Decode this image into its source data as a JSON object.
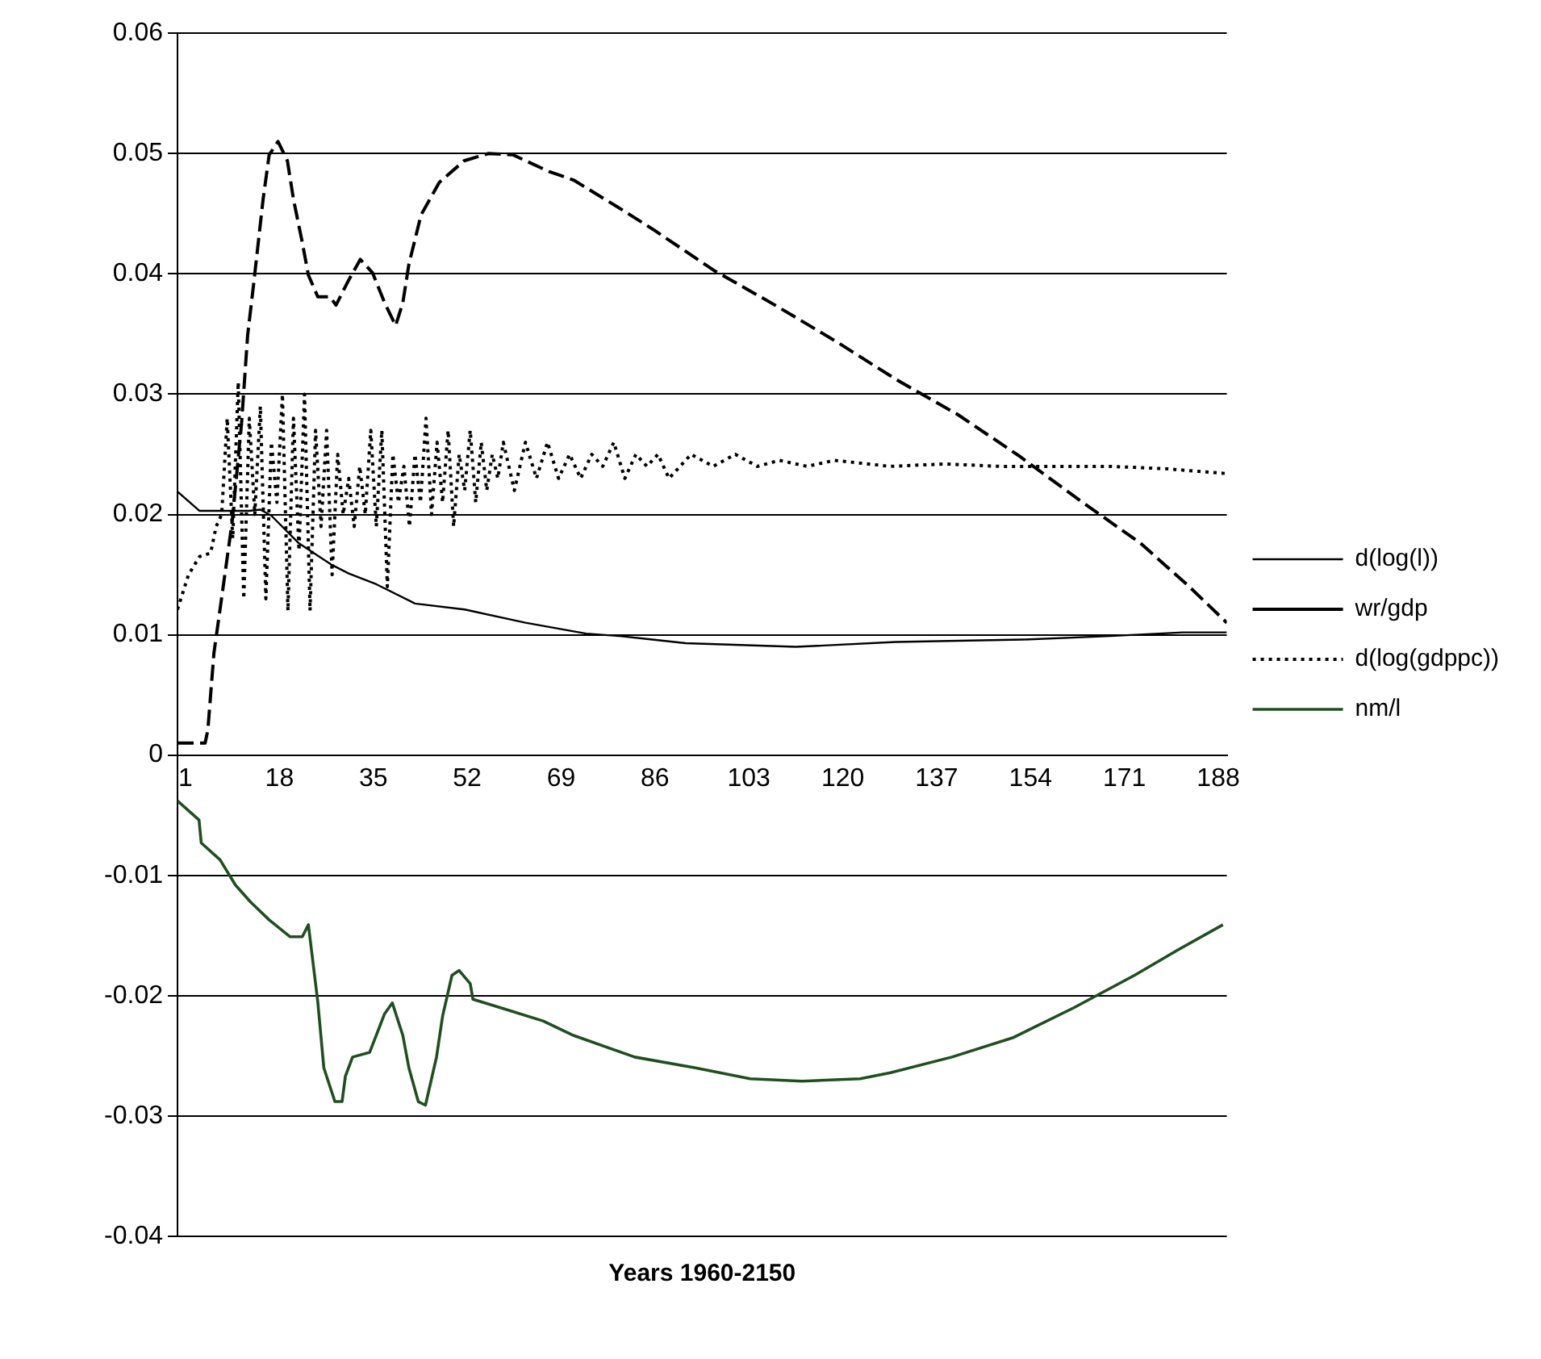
{
  "chart_data": {
    "type": "line",
    "xlabel": "Years 1960-2150",
    "xlim": [
      1,
      191
    ],
    "xticks": [
      1,
      18,
      35,
      52,
      69,
      86,
      103,
      120,
      137,
      154,
      171,
      188
    ],
    "ylim": [
      -0.04,
      0.06
    ],
    "yticks": [
      -0.04,
      -0.03,
      -0.02,
      -0.01,
      0,
      0.01,
      0.02,
      0.03,
      0.04,
      0.05,
      0.06
    ],
    "grid": "y",
    "legend": "right",
    "series": [
      {
        "name": "d(log(l))",
        "color": "#000000",
        "line_style": "solid",
        "x": [
          1,
          5,
          14,
          16,
          18,
          23,
          29,
          32,
          37,
          44,
          53,
          64,
          75,
          81,
          87,
          93,
          113,
          131,
          154,
          170,
          183,
          191
        ],
        "values": [
          0.0219,
          0.0203,
          0.0203,
          0.0204,
          0.0199,
          0.0176,
          0.0158,
          0.0151,
          0.0142,
          0.0126,
          0.0121,
          0.011,
          0.0101,
          0.0099,
          0.0096,
          0.0093,
          0.009,
          0.0094,
          0.0096,
          0.0099,
          0.0102,
          0.0102
        ]
      },
      {
        "name": "wr/gdp",
        "color": "#000000",
        "line_style": "dashed",
        "x": [
          1,
          6,
          6.5,
          7.6,
          8.7,
          10.9,
          12.6,
          13.7,
          14.8,
          16.5,
          17.6,
          19.2,
          20.9,
          22,
          23.6,
          24.7,
          26.4,
          28.6,
          29.7,
          31.9,
          34.1,
          36.3,
          38.5,
          40.5,
          41.8,
          42.9,
          45.1,
          48.4,
          52.9,
          57.3,
          61.7,
          68.3,
          72.7,
          81.6,
          87.1,
          98.1,
          109.2,
          120.2,
          131.2,
          142.3,
          153.3,
          164.3,
          175.4,
          184.2,
          191
        ],
        "values": [
          0.001,
          0.001,
          0.0021,
          0.0085,
          0.0121,
          0.0194,
          0.0276,
          0.0349,
          0.0392,
          0.0462,
          0.0499,
          0.051,
          0.0494,
          0.0462,
          0.0426,
          0.0399,
          0.0381,
          0.0381,
          0.0374,
          0.0394,
          0.0412,
          0.0401,
          0.0376,
          0.0357,
          0.0376,
          0.0408,
          0.0449,
          0.0476,
          0.0494,
          0.05,
          0.0499,
          0.0485,
          0.0478,
          0.0453,
          0.0437,
          0.0403,
          0.0374,
          0.0344,
          0.0312,
          0.0283,
          0.0249,
          0.0212,
          0.0176,
          0.014,
          0.011
        ]
      },
      {
        "name": "d(log(gdppc))",
        "color": "#000000",
        "line_style": "dotted",
        "x": [
          1,
          3,
          5,
          7,
          8,
          9,
          10,
          11,
          12,
          13,
          14,
          15,
          16,
          17,
          18,
          19,
          20,
          21,
          22,
          23,
          24,
          25,
          26,
          27,
          28,
          29,
          30,
          31,
          32,
          33,
          34,
          35,
          36,
          37,
          38,
          39,
          40,
          41,
          42,
          43,
          44,
          45,
          46,
          47,
          48,
          49,
          50,
          51,
          52,
          53,
          54,
          55,
          56,
          57,
          58,
          59,
          60,
          62,
          64,
          66,
          68,
          70,
          72,
          74,
          76,
          78,
          80,
          82,
          84,
          86,
          88,
          90,
          94,
          98,
          102,
          106,
          110,
          115,
          120,
          130,
          140,
          150,
          160,
          170,
          180,
          191
        ],
        "values": [
          0.0121,
          0.015,
          0.0165,
          0.0168,
          0.019,
          0.02,
          0.028,
          0.018,
          0.031,
          0.013,
          0.028,
          0.02,
          0.029,
          0.013,
          0.026,
          0.021,
          0.03,
          0.012,
          0.028,
          0.017,
          0.03,
          0.012,
          0.027,
          0.019,
          0.027,
          0.015,
          0.025,
          0.02,
          0.023,
          0.019,
          0.024,
          0.02,
          0.027,
          0.019,
          0.027,
          0.014,
          0.025,
          0.021,
          0.024,
          0.019,
          0.025,
          0.021,
          0.028,
          0.02,
          0.026,
          0.021,
          0.027,
          0.019,
          0.025,
          0.022,
          0.027,
          0.021,
          0.026,
          0.022,
          0.025,
          0.023,
          0.026,
          0.022,
          0.026,
          0.023,
          0.026,
          0.023,
          0.025,
          0.023,
          0.025,
          0.024,
          0.026,
          0.023,
          0.025,
          0.024,
          0.025,
          0.023,
          0.025,
          0.024,
          0.025,
          0.024,
          0.0245,
          0.024,
          0.0245,
          0.024,
          0.0242,
          0.024,
          0.024,
          0.024,
          0.0238,
          0.0234
        ]
      },
      {
        "name": "nm/l",
        "color": "#1f4f1f",
        "line_style": "solid",
        "x": [
          1,
          4.9,
          5.3,
          8.7,
          11.5,
          14.2,
          17.6,
          21.4,
          23.6,
          24.7,
          26.4,
          27.5,
          29.5,
          30.8,
          31.4,
          32.7,
          35.8,
          38.5,
          39.9,
          41.8,
          42.9,
          44.6,
          45.9,
          47.9,
          49,
          50.7,
          52,
          54,
          54.5,
          59.5,
          67.2,
          72.7,
          83.8,
          94.8,
          104.7,
          114.1,
          124.6,
          130.1,
          141.2,
          152.2,
          163.3,
          174.3,
          182.1,
          190.3
        ],
        "values": [
          -0.0038,
          -0.0054,
          -0.0073,
          -0.0087,
          -0.0108,
          -0.0122,
          -0.0137,
          -0.0151,
          -0.0151,
          -0.0141,
          -0.0205,
          -0.026,
          -0.0288,
          -0.0288,
          -0.0267,
          -0.0251,
          -0.0247,
          -0.0215,
          -0.0206,
          -0.0233,
          -0.026,
          -0.0288,
          -0.0291,
          -0.0251,
          -0.0217,
          -0.0183,
          -0.0179,
          -0.019,
          -0.0203,
          -0.021,
          -0.0221,
          -0.0233,
          -0.0251,
          -0.026,
          -0.0269,
          -0.0271,
          -0.0269,
          -0.0264,
          -0.0251,
          -0.0235,
          -0.021,
          -0.0183,
          -0.0162,
          -0.0141
        ]
      }
    ]
  }
}
